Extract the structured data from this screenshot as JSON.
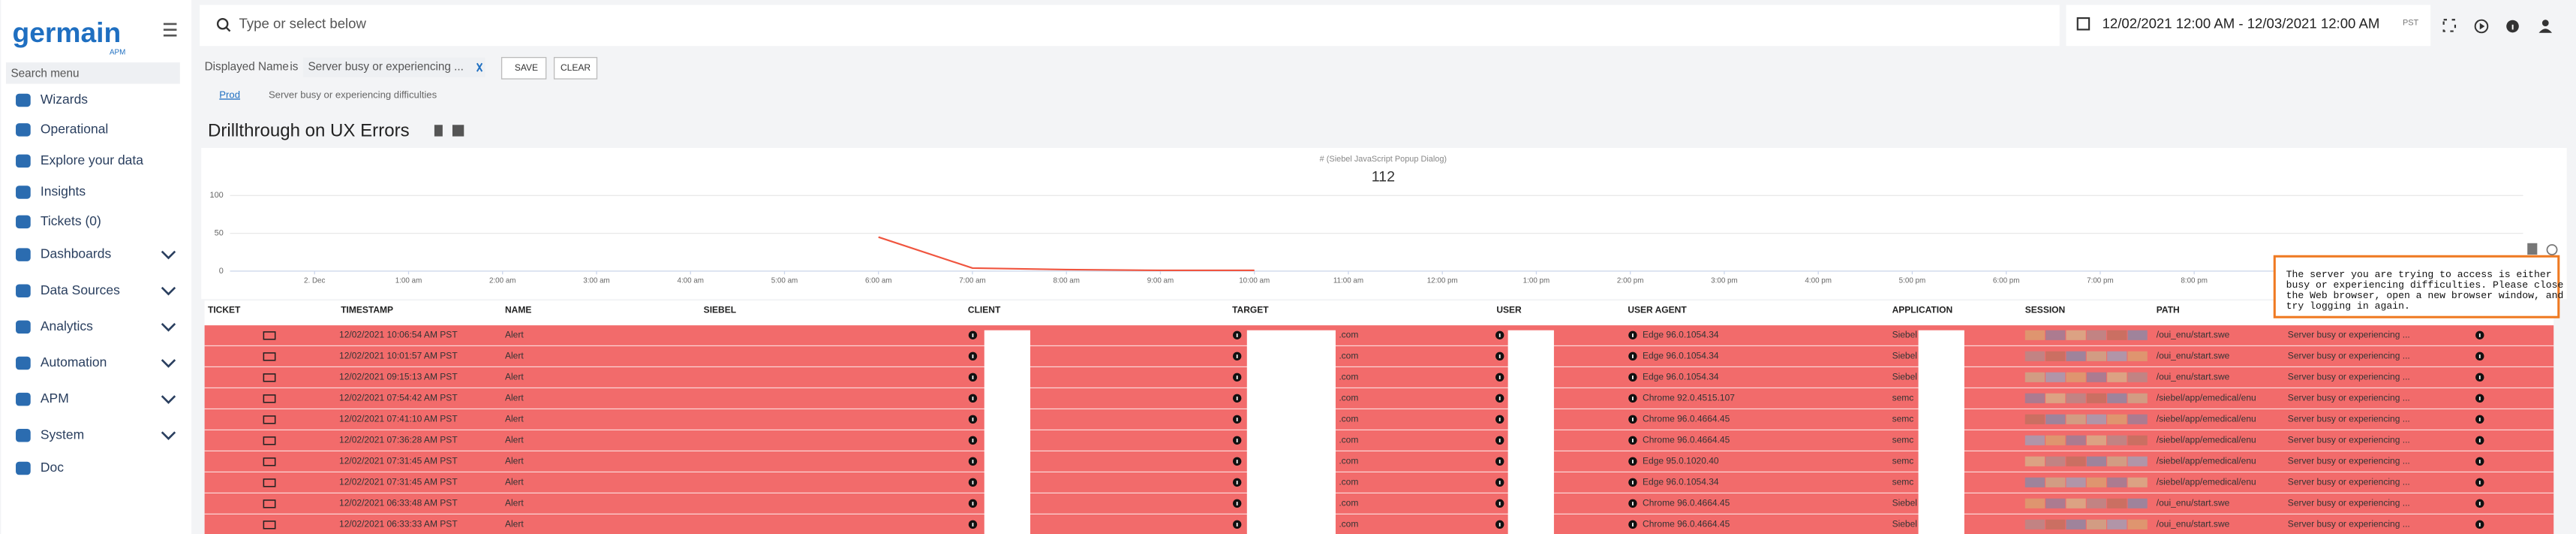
{
  "sidebar": {
    "logo": "germain",
    "logo_sub": "APM",
    "search_placeholder": "Search menu",
    "items": [
      {
        "label": "Wizards",
        "expandable": false
      },
      {
        "label": "Operational",
        "expandable": false
      },
      {
        "label": "Explore your data",
        "expandable": false
      },
      {
        "label": "Insights",
        "expandable": false
      },
      {
        "label": "Tickets (0)",
        "expandable": false
      },
      {
        "label": "Dashboards",
        "expandable": true
      },
      {
        "label": "Data Sources",
        "expandable": true
      },
      {
        "label": "Analytics",
        "expandable": true
      },
      {
        "label": "Automation",
        "expandable": true
      },
      {
        "label": "APM",
        "expandable": true
      },
      {
        "label": "System",
        "expandable": true
      },
      {
        "label": "Doc",
        "expandable": false
      }
    ]
  },
  "topbar": {
    "search_placeholder": "Type or select below",
    "date_range": "12/02/2021 12:00 AM - 12/03/2021 12:00 AM",
    "timezone": "PST"
  },
  "filter": {
    "field": "Displayed Name",
    "operator": "is",
    "value": "Server busy or experiencing ...",
    "save": "SAVE",
    "clear": "CLEAR"
  },
  "breadcrumb": [
    "Prod",
    "Server busy or experiencing difficulties"
  ],
  "page_title": "Drillthrough on UX Errors",
  "chart_data": {
    "type": "line",
    "title": "# (Siebel JavaScript Popup Dialog)",
    "total": "112",
    "x": [
      6,
      7,
      8,
      9,
      10
    ],
    "series": [
      {
        "color": "#f0553f",
        "values": [
          45,
          4,
          2,
          1,
          1
        ]
      }
    ],
    "xlim": [
      -0.9,
      23.5
    ],
    "xticks": [
      {
        "value": 0,
        "label": "2. Dec"
      },
      {
        "value": 1,
        "label": "1:00 am"
      },
      {
        "value": 2,
        "label": "2:00 am"
      },
      {
        "value": 3,
        "label": "3:00 am"
      },
      {
        "value": 4,
        "label": "4:00 am"
      },
      {
        "value": 5,
        "label": "5:00 am"
      },
      {
        "value": 6,
        "label": "6:00 am"
      },
      {
        "value": 7,
        "label": "7:00 am"
      },
      {
        "value": 8,
        "label": "8:00 am"
      },
      {
        "value": 9,
        "label": "9:00 am"
      },
      {
        "value": 10,
        "label": "10:00 am"
      },
      {
        "value": 11,
        "label": "11:00 am"
      },
      {
        "value": 12,
        "label": "12:00 pm"
      },
      {
        "value": 13,
        "label": "1:00 pm"
      },
      {
        "value": 14,
        "label": "2:00 pm"
      },
      {
        "value": 15,
        "label": "3:00 pm"
      },
      {
        "value": 16,
        "label": "4:00 pm"
      },
      {
        "value": 17,
        "label": "5:00 pm"
      },
      {
        "value": 18,
        "label": "6:00 pm"
      },
      {
        "value": 19,
        "label": "7:00 pm"
      },
      {
        "value": 20,
        "label": "8:00 pm"
      }
    ],
    "ylim": [
      0,
      115
    ],
    "yticks": [
      0,
      50,
      100
    ],
    "grid": true
  },
  "table": {
    "columns": [
      "TICKET",
      "TIMESTAMP",
      "NAME",
      "SIEBEL",
      "CLIENT",
      "TARGET",
      "USER",
      "USER AGENT",
      "APPLICATION",
      "SESSION",
      "PATH"
    ],
    "rows": [
      {
        "timestamp": "12/02/2021 10:06:54 AM PST",
        "name": "Alert",
        "target": ".com",
        "user_agent": "Edge 96.0.1054.34",
        "application": "Siebel",
        "path": "/oui_enu/start.swe",
        "message": "Server busy or experiencing ..."
      },
      {
        "timestamp": "12/02/2021 10:01:57 AM PST",
        "name": "Alert",
        "target": ".com",
        "user_agent": "Edge 96.0.1054.34",
        "application": "Siebel",
        "path": "/oui_enu/start.swe",
        "message": "Server busy or experiencing ..."
      },
      {
        "timestamp": "12/02/2021 09:15:13 AM PST",
        "name": "Alert",
        "target": ".com",
        "user_agent": "Edge 96.0.1054.34",
        "application": "Siebel",
        "path": "/oui_enu/start.swe",
        "message": "Server busy or experiencing ..."
      },
      {
        "timestamp": "12/02/2021 07:54:42 AM PST",
        "name": "Alert",
        "target": ".com",
        "user_agent": "Chrome 92.0.4515.107",
        "application": "semc",
        "path": "/siebel/app/emedical/enu",
        "message": "Server busy or experiencing ..."
      },
      {
        "timestamp": "12/02/2021 07:41:10 AM PST",
        "name": "Alert",
        "target": ".com",
        "user_agent": "Chrome 96.0.4664.45",
        "application": "semc",
        "path": "/siebel/app/emedical/enu",
        "message": "Server busy or experiencing ..."
      },
      {
        "timestamp": "12/02/2021 07:36:28 AM PST",
        "name": "Alert",
        "target": ".com",
        "user_agent": "Chrome 96.0.4664.45",
        "application": "semc",
        "path": "/siebel/app/emedical/enu",
        "message": "Server busy or experiencing ..."
      },
      {
        "timestamp": "12/02/2021 07:31:45 AM PST",
        "name": "Alert",
        "target": ".com",
        "user_agent": "Edge 95.0.1020.40",
        "application": "semc",
        "path": "/siebel/app/emedical/enu",
        "message": "Server busy or experiencing ..."
      },
      {
        "timestamp": "12/02/2021 07:31:45 AM PST",
        "name": "Alert",
        "target": ".com",
        "user_agent": "Edge 96.0.1054.34",
        "application": "semc",
        "path": "/siebel/app/emedical/enu",
        "message": "Server busy or experiencing ..."
      },
      {
        "timestamp": "12/02/2021 06:33:48 AM PST",
        "name": "Alert",
        "target": ".com",
        "user_agent": "Chrome 96.0.4664.45",
        "application": "Siebel",
        "path": "/oui_enu/start.swe",
        "message": "Server busy or experiencing ..."
      },
      {
        "timestamp": "12/02/2021 06:33:33 AM PST",
        "name": "Alert",
        "target": ".com",
        "user_agent": "Chrome 96.0.4664.45",
        "application": "Siebel",
        "path": "/oui_enu/start.swe",
        "message": "Server busy or experiencing ..."
      }
    ]
  },
  "tooltip": {
    "lines": [
      "The server you are trying to access is either",
      "busy or experiencing difficulties. Please close",
      "the Web browser, open a new browser window, and",
      "try logging in again."
    ]
  }
}
